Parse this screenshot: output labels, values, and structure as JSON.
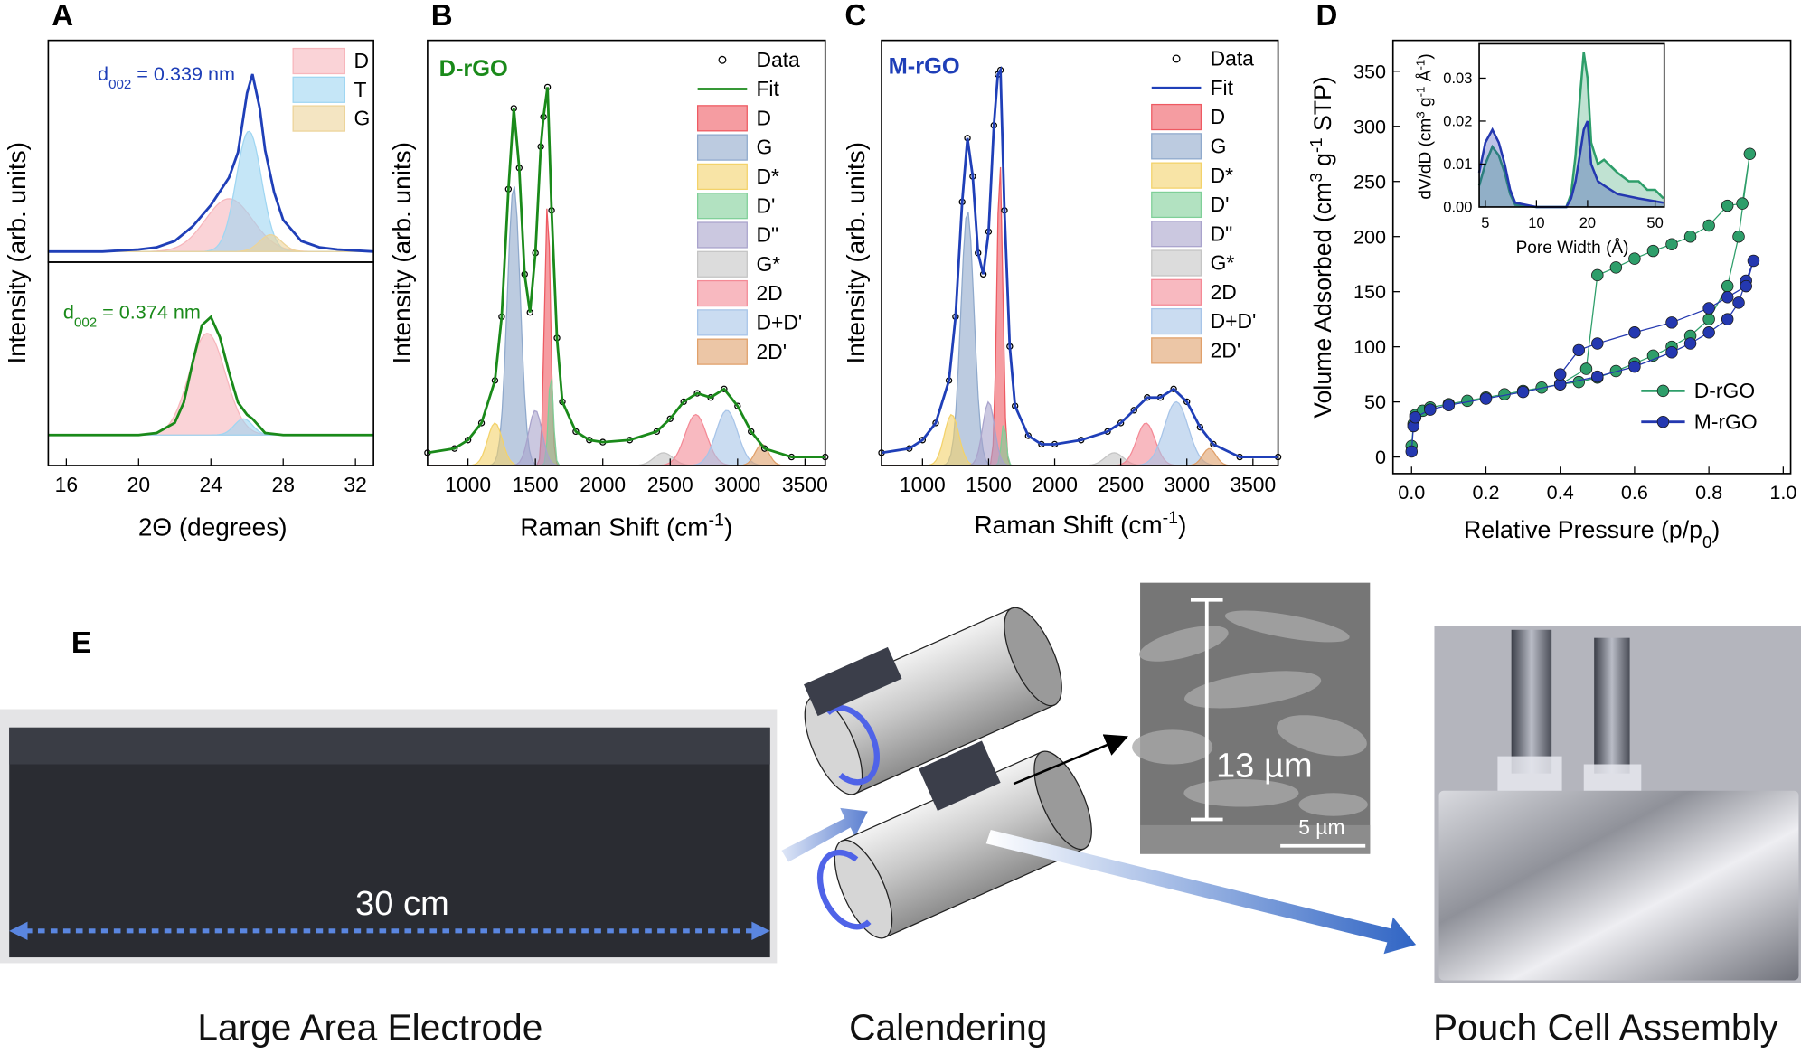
{
  "panel_letters": [
    "A",
    "B",
    "C",
    "D"
  ],
  "chart_data": [
    {
      "type": "line",
      "xlim": [
        15,
        33
      ],
      "ylim": [
        -0.05,
        1
      ],
      "ylabel": "Intensity (arb. units)",
      "annotation": [
        {
          "text": "d"
        },
        {
          "sub": "002"
        },
        {
          "text": " = 0.339 nm"
        }
      ],
      "legend": "upper right",
      "series": [
        {
          "color": "#1f3fb8",
          "x": [
            15,
            18,
            20,
            21,
            22,
            23,
            24,
            25,
            25.5,
            26,
            26.3,
            26.7,
            27,
            27.5,
            28,
            29,
            30,
            31,
            33
          ],
          "values": [
            0,
            0,
            0.01,
            0.02,
            0.05,
            0.12,
            0.22,
            0.35,
            0.47,
            0.75,
            0.84,
            0.68,
            0.48,
            0.28,
            0.15,
            0.05,
            0.02,
            0.01,
            0
          ]
        }
      ],
      "components": [
        {
          "name": "D",
          "color": "#f7b6bc",
          "center": 25,
          "height": 0.25,
          "width": 1.3
        },
        {
          "name": "T",
          "color": "#9fd6f2",
          "center": 26.1,
          "height": 0.57,
          "width": 0.7
        },
        {
          "name": "G",
          "color": "#ecd49a",
          "center": 27.3,
          "height": 0.08,
          "width": 0.6
        }
      ]
    },
    {
      "type": "line",
      "xlim": [
        15,
        33
      ],
      "ylim": [
        -0.15,
        0.85
      ],
      "xticks": [
        16,
        20,
        24,
        28,
        32
      ],
      "xlabel": "2Θ (degrees)",
      "annotation": [
        {
          "text": "d"
        },
        {
          "sub": "002"
        },
        {
          "text": " = 0.374 nm"
        }
      ],
      "series": [
        {
          "color": "#1a8a1a",
          "x": [
            15,
            20,
            21,
            22,
            22.5,
            23,
            23.5,
            24,
            24.5,
            25,
            25.5,
            26,
            26.3,
            27,
            28,
            33
          ],
          "values": [
            0,
            0,
            0.01,
            0.06,
            0.16,
            0.36,
            0.54,
            0.58,
            0.48,
            0.31,
            0.16,
            0.1,
            0.08,
            0.01,
            0,
            0
          ]
        }
      ],
      "components": [
        {
          "color": "#f7b6bc",
          "center": 23.8,
          "height": 0.5,
          "width": 1.0
        },
        {
          "color": "#9fd6f2",
          "center": 25.8,
          "height": 0.08,
          "width": 0.5
        }
      ]
    },
    {
      "type": "line",
      "title": "D-rGO",
      "xlim": [
        700,
        3650
      ],
      "ylim": [
        0,
        1
      ],
      "xticks": [
        1000,
        1500,
        2000,
        2500,
        3000,
        3500
      ],
      "xlabel": [
        {
          "text": "Raman Shift (cm"
        },
        {
          "sup": "-1"
        },
        {
          "text": ")"
        }
      ],
      "ylabel": "Intensity (arb. units)",
      "legend": "upper right",
      "series": [
        {
          "name": "Data",
          "mode": "markers",
          "color": "#000000",
          "x": [
            700,
            900,
            1000,
            1100,
            1200,
            1250,
            1300,
            1340,
            1380,
            1420,
            1460,
            1500,
            1540,
            1560,
            1590,
            1620,
            1660,
            1700,
            1800,
            1900,
            2000,
            2200,
            2400,
            2500,
            2600,
            2700,
            2800,
            2900,
            3000,
            3100,
            3200,
            3400,
            3650
          ],
          "values": [
            0.03,
            0.04,
            0.06,
            0.1,
            0.2,
            0.35,
            0.65,
            0.84,
            0.7,
            0.45,
            0.36,
            0.5,
            0.75,
            0.82,
            0.89,
            0.6,
            0.3,
            0.15,
            0.08,
            0.06,
            0.055,
            0.06,
            0.08,
            0.11,
            0.15,
            0.17,
            0.16,
            0.18,
            0.14,
            0.08,
            0.04,
            0.02,
            0.02
          ]
        },
        {
          "name": "Fit",
          "mode": "line",
          "color": "#1a8a1a",
          "x": [
            700,
            900,
            1000,
            1100,
            1200,
            1250,
            1300,
            1340,
            1380,
            1420,
            1460,
            1500,
            1540,
            1560,
            1590,
            1620,
            1660,
            1700,
            1800,
            1900,
            2000,
            2200,
            2400,
            2500,
            2600,
            2700,
            2800,
            2900,
            3000,
            3100,
            3200,
            3400,
            3650
          ],
          "values": [
            0.03,
            0.04,
            0.06,
            0.1,
            0.2,
            0.35,
            0.65,
            0.84,
            0.7,
            0.45,
            0.36,
            0.5,
            0.75,
            0.82,
            0.89,
            0.6,
            0.3,
            0.15,
            0.08,
            0.06,
            0.055,
            0.06,
            0.08,
            0.11,
            0.15,
            0.17,
            0.16,
            0.18,
            0.14,
            0.08,
            0.04,
            0.02,
            0.02
          ]
        }
      ],
      "components": [
        {
          "name": "D",
          "color": "#ee5a62",
          "center": 1590,
          "height": 0.62,
          "width": 22
        },
        {
          "name": "G",
          "color": "#8fa9cc",
          "center": 1340,
          "height": 0.66,
          "width": 48
        },
        {
          "name": "D*",
          "color": "#f3d26a",
          "center": 1200,
          "height": 0.1,
          "width": 55
        },
        {
          "name": "D'",
          "color": "#7fcf98",
          "center": 1615,
          "height": 0.22,
          "width": 18
        },
        {
          "name": "D\"",
          "color": "#a9a3cc",
          "center": 1500,
          "height": 0.13,
          "width": 50
        },
        {
          "name": "G*",
          "color": "#c4c4c4",
          "center": 2450,
          "height": 0.03,
          "width": 70
        },
        {
          "name": "2D",
          "color": "#f48a96",
          "center": 2690,
          "height": 0.12,
          "width": 80
        },
        {
          "name": "D+D'",
          "color": "#a7c4e8",
          "center": 2920,
          "height": 0.13,
          "width": 80
        },
        {
          "name": "2D'",
          "color": "#e0a06a",
          "center": 3180,
          "height": 0.05,
          "width": 50
        }
      ]
    },
    {
      "type": "line",
      "title": "M-rGO",
      "xlim": [
        690,
        3690
      ],
      "ylim": [
        0,
        1
      ],
      "xticks": [
        1000,
        1500,
        2000,
        2500,
        3000,
        3500
      ],
      "xlabel": [
        {
          "text": "Raman Shift (cm"
        },
        {
          "sup": "-1"
        },
        {
          "text": ")"
        }
      ],
      "ylabel": "Intensity (arb. units)",
      "legend": "upper right",
      "series": [
        {
          "name": "Data",
          "mode": "markers",
          "color": "#000000",
          "x": [
            690,
            900,
            1000,
            1100,
            1200,
            1250,
            1300,
            1340,
            1380,
            1420,
            1460,
            1500,
            1540,
            1570,
            1590,
            1620,
            1660,
            1700,
            1800,
            1900,
            2000,
            2200,
            2400,
            2500,
            2600,
            2700,
            2800,
            2900,
            3000,
            3100,
            3200,
            3400,
            3690
          ],
          "values": [
            0.03,
            0.04,
            0.06,
            0.1,
            0.2,
            0.35,
            0.62,
            0.77,
            0.68,
            0.5,
            0.45,
            0.55,
            0.8,
            0.92,
            0.93,
            0.6,
            0.28,
            0.14,
            0.07,
            0.05,
            0.05,
            0.06,
            0.08,
            0.1,
            0.13,
            0.16,
            0.16,
            0.18,
            0.15,
            0.09,
            0.05,
            0.02,
            0.02
          ]
        },
        {
          "name": "Fit",
          "mode": "line",
          "color": "#1f3fb8",
          "x": [
            690,
            900,
            1000,
            1100,
            1200,
            1250,
            1300,
            1340,
            1380,
            1420,
            1460,
            1500,
            1540,
            1570,
            1590,
            1620,
            1660,
            1700,
            1800,
            1900,
            2000,
            2200,
            2400,
            2500,
            2600,
            2700,
            2800,
            2900,
            3000,
            3100,
            3200,
            3400,
            3690
          ],
          "values": [
            0.03,
            0.04,
            0.06,
            0.1,
            0.2,
            0.35,
            0.62,
            0.77,
            0.68,
            0.5,
            0.45,
            0.55,
            0.8,
            0.92,
            0.93,
            0.6,
            0.28,
            0.14,
            0.07,
            0.05,
            0.05,
            0.06,
            0.08,
            0.1,
            0.13,
            0.16,
            0.16,
            0.18,
            0.15,
            0.09,
            0.05,
            0.02,
            0.02
          ]
        }
      ],
      "components": [
        {
          "name": "D",
          "color": "#ee5a62",
          "center": 1585,
          "height": 0.72,
          "width": 22
        },
        {
          "name": "G",
          "color": "#8fa9cc",
          "center": 1340,
          "height": 0.6,
          "width": 50
        },
        {
          "name": "D*",
          "color": "#f3d26a",
          "center": 1220,
          "height": 0.12,
          "width": 55
        },
        {
          "name": "D'",
          "color": "#7fcf98",
          "center": 1615,
          "height": 0.1,
          "width": 18
        },
        {
          "name": "D\"",
          "color": "#a9a3cc",
          "center": 1500,
          "height": 0.15,
          "width": 45
        },
        {
          "name": "G*",
          "color": "#c4c4c4",
          "center": 2450,
          "height": 0.03,
          "width": 70
        },
        {
          "name": "2D",
          "color": "#f48a96",
          "center": 2690,
          "height": 0.1,
          "width": 70
        },
        {
          "name": "D+D'",
          "color": "#a7c4e8",
          "center": 2920,
          "height": 0.15,
          "width": 90
        },
        {
          "name": "2D'",
          "color": "#e0a06a",
          "center": 3170,
          "height": 0.04,
          "width": 50
        }
      ]
    },
    {
      "type": "line",
      "markers": true,
      "xlim": [
        -0.05,
        1.02
      ],
      "ylim": [
        -15,
        378
      ],
      "xticks": [
        {
          "value": 0,
          "label": "0.0"
        },
        0.2,
        0.4,
        0.6,
        0.8,
        {
          "value": 1,
          "label": "1.0"
        }
      ],
      "yticks": [
        0,
        50,
        100,
        150,
        200,
        250,
        300,
        350
      ],
      "xlabel": [
        {
          "text": "Relative Pressure (p/p"
        },
        {
          "sub": "0"
        },
        {
          "text": ")"
        }
      ],
      "ylabel": [
        {
          "text": "Volume Adsorbed (cm"
        },
        {
          "sup": "3"
        },
        {
          "text": " g"
        },
        {
          "sup": "-1"
        },
        {
          "text": " STP)"
        }
      ],
      "legend": "lower right",
      "series": [
        {
          "name": "D-rGO",
          "color": "#2e9e6a",
          "x": [
            0,
            0.005,
            0.01,
            0.03,
            0.05,
            0.1,
            0.15,
            0.2,
            0.25,
            0.3,
            0.35,
            0.4,
            0.45,
            0.5,
            0.55,
            0.6,
            0.65,
            0.7,
            0.75,
            0.8,
            0.85,
            0.88,
            0.91,
            0.89,
            0.85,
            0.8,
            0.75,
            0.7,
            0.65,
            0.6,
            0.55,
            0.5,
            0.47,
            0.4
          ],
          "values": [
            10,
            30,
            38,
            42,
            45,
            48,
            51,
            54,
            57,
            60,
            63,
            66,
            68,
            72,
            78,
            85,
            92,
            100,
            110,
            125,
            155,
            200,
            275,
            230,
            228,
            210,
            200,
            193,
            187,
            180,
            172,
            165,
            80,
            66
          ]
        },
        {
          "name": "M-rGO",
          "color": "#2438b0",
          "x": [
            0,
            0.005,
            0.01,
            0.05,
            0.1,
            0.2,
            0.3,
            0.4,
            0.5,
            0.6,
            0.7,
            0.75,
            0.8,
            0.85,
            0.88,
            0.9,
            0.92,
            0.9,
            0.85,
            0.8,
            0.7,
            0.6,
            0.5,
            0.45,
            0.4
          ],
          "values": [
            5,
            28,
            36,
            43,
            47,
            53,
            59,
            66,
            73,
            82,
            95,
            103,
            113,
            125,
            140,
            160,
            178,
            155,
            145,
            135,
            122,
            113,
            103,
            97,
            75
          ]
        }
      ]
    },
    {
      "type": "area",
      "xscale": "log",
      "xlim": [
        4.6,
        56.6
      ],
      "ylim": [
        0,
        0.038
      ],
      "xticks": [
        5,
        10,
        20,
        50
      ],
      "yticks": [
        {
          "value": 0,
          "label": "0.00"
        },
        0.01,
        0.02,
        0.03
      ],
      "xlabel": "Pore Width (Å)",
      "ylabel": [
        {
          "text": "dV/dD (cm"
        },
        {
          "sup": "3"
        },
        {
          "text": " g"
        },
        {
          "sup": "-1"
        },
        {
          "text": " Å"
        },
        {
          "sup": "-1"
        },
        {
          "text": ")"
        }
      ],
      "series": [
        {
          "color": "#2e9e6a",
          "x": [
            4.6,
            5,
            5.5,
            6,
            6.5,
            7,
            7.5,
            10,
            15,
            16,
            17,
            18,
            19,
            20,
            21,
            23,
            25,
            30,
            35,
            40,
            45,
            50,
            56
          ],
          "values": [
            0.005,
            0.01,
            0.014,
            0.012,
            0.008,
            0.003,
            0.0005,
            0,
            0,
            0.003,
            0.012,
            0.025,
            0.036,
            0.03,
            0.015,
            0.01,
            0.011,
            0.008,
            0.006,
            0.006,
            0.004,
            0.004,
            0.002
          ]
        },
        {
          "color": "#2438b0",
          "x": [
            4.6,
            5,
            5.5,
            6,
            6.5,
            7,
            7.5,
            10,
            15,
            16,
            17,
            18,
            19,
            20,
            21,
            23,
            25,
            30,
            40,
            56
          ],
          "values": [
            0.008,
            0.015,
            0.018,
            0.015,
            0.01,
            0.004,
            0.001,
            0,
            0,
            0.002,
            0.006,
            0.012,
            0.018,
            0.02,
            0.01,
            0.006,
            0.005,
            0.003,
            0.002,
            0.001
          ]
        }
      ]
    }
  ],
  "panel_e": {
    "letter": "E",
    "length": "30 cm",
    "thickness": "13 µm",
    "scale": "5 µm",
    "captions": [
      "Large Area Electrode",
      "Calendering",
      "Pouch Cell Assembly"
    ]
  }
}
